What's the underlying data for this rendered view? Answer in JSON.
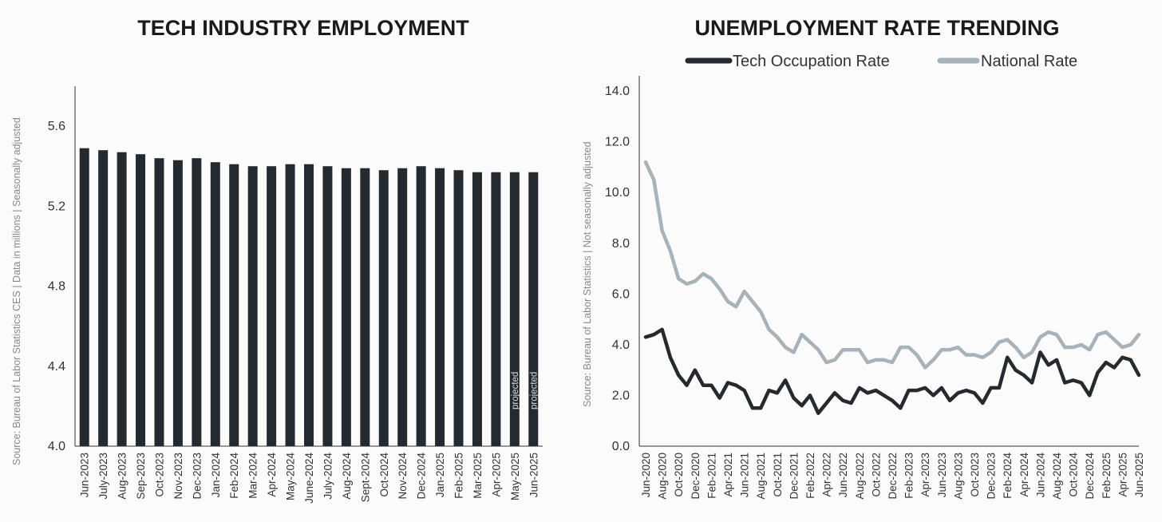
{
  "chart_data": [
    {
      "type": "bar",
      "title": "TECH INDUSTRY EMPLOYMENT",
      "source": "Source: Bureau of Labor Statistics CES | Data in millions | Seasonally adjusted",
      "categories": [
        "Jun-2023",
        "July-2023",
        "Aug-2023",
        "Sep-2023",
        "Oct-2023",
        "Nov-2023",
        "Dec-2023",
        "Jan-2024",
        "Feb-2024",
        "Mar-2024",
        "Apr-2024",
        "May-2024",
        "June-2024",
        "July-2024",
        "Aug-2024",
        "Sept-2024",
        "Oct-2024",
        "Nov-2024",
        "Dec-2024",
        "Jan-2025",
        "Feb-2025",
        "Mar-2025",
        "Apr-2025",
        "May-2025",
        "Jun-2025"
      ],
      "values": [
        5.49,
        5.48,
        5.47,
        5.46,
        5.44,
        5.43,
        5.44,
        5.42,
        5.41,
        5.4,
        5.4,
        5.41,
        5.41,
        5.4,
        5.39,
        5.39,
        5.38,
        5.39,
        5.4,
        5.39,
        5.38,
        5.37,
        5.37,
        5.37,
        5.37
      ],
      "annotations": [
        "",
        "",
        "",
        "",
        "",
        "",
        "",
        "",
        "",
        "",
        "",
        "",
        "",
        "",
        "",
        "",
        "",
        "",
        "",
        "",
        "",
        "",
        "",
        "projected",
        "projected"
      ],
      "ylim": [
        4.0,
        5.8
      ],
      "yticks": [
        "4.0",
        "4.4",
        "4.8",
        "5.2",
        "5.6"
      ],
      "bar_color": "#262a2e",
      "xlabel": "",
      "ylabel": ""
    },
    {
      "type": "line",
      "title": "UNEMPLOYMENT RATE TRENDING",
      "source": "Source: Bureau of Labor Statistics | Not seasonally adjusted",
      "x": [
        "Jun-2020",
        "Jul-2020",
        "Aug-2020",
        "Sep-2020",
        "Oct-2020",
        "Nov-2020",
        "Dec-2020",
        "Jan-2021",
        "Feb-2021",
        "Mar-2021",
        "Apr-2021",
        "May-2021",
        "Jun-2021",
        "Jul-2021",
        "Aug-2021",
        "Sep-2021",
        "Oct-2021",
        "Nov-2021",
        "Dec-2021",
        "Jan-2022",
        "Feb-2022",
        "Mar-2022",
        "Apr-2022",
        "May-2022",
        "Jun-2022",
        "Jul-2022",
        "Aug-2022",
        "Sep-2022",
        "Oct-2022",
        "Nov-2022",
        "Dec-2022",
        "Jan-2023",
        "Feb-2023",
        "Mar-2023",
        "Apr-2023",
        "May-2023",
        "Jun-2023",
        "Jul-2023",
        "Aug-2023",
        "Sep-2023",
        "Oct-2023",
        "Nov-2023",
        "Dec-2023",
        "Jan-2024",
        "Feb-2024",
        "Mar-2024",
        "Apr-2024",
        "May-2024",
        "Jun-2024",
        "Jul-2024",
        "Aug-2024",
        "Sep-2024",
        "Oct-2024",
        "Nov-2024",
        "Dec-2024",
        "Jan-2025",
        "Feb-2025",
        "Mar-2025",
        "Apr-2025",
        "May-2025",
        "Jun-2025"
      ],
      "xticks": [
        "Jun-2020",
        "Aug-2020",
        "Oct-2020",
        "Dec-2020",
        "Feb-2021",
        "Apr-2021",
        "Jun-2021",
        "Aug-2021",
        "Oct-2021",
        "Dec-2021",
        "Feb-2022",
        "Apr-2022",
        "Jun-2022",
        "Aug-2022",
        "Oct-2022",
        "Dec-2022",
        "Feb-2023",
        "Apr-2023",
        "Jun-2023",
        "Aug-2023",
        "Oct-2023",
        "Dec-2023",
        "Feb-2024",
        "Apr-2024",
        "Jun-2024",
        "Aug-2024",
        "Oct-2024",
        "Dec-2024",
        "Feb-2025",
        "Apr-2025",
        "Jun-2025"
      ],
      "series": [
        {
          "name": "Tech Occupation Rate",
          "color": "#262a2e",
          "values": [
            4.3,
            4.4,
            4.6,
            3.5,
            2.8,
            2.4,
            3.0,
            2.4,
            2.4,
            1.9,
            2.5,
            2.4,
            2.2,
            1.5,
            1.5,
            2.2,
            2.1,
            2.6,
            1.9,
            1.6,
            2.0,
            1.3,
            1.7,
            2.1,
            1.8,
            1.7,
            2.3,
            2.1,
            2.2,
            2.0,
            1.8,
            1.5,
            2.2,
            2.2,
            2.3,
            2.0,
            2.3,
            1.8,
            2.1,
            2.2,
            2.1,
            1.7,
            2.3,
            2.3,
            3.5,
            3.0,
            2.8,
            2.5,
            3.7,
            3.2,
            3.4,
            2.5,
            2.6,
            2.5,
            2.0,
            2.9,
            3.3,
            3.1,
            3.5,
            3.4,
            2.8
          ]
        },
        {
          "name": "National Rate",
          "color": "#a8b2b9",
          "values": [
            11.2,
            10.5,
            8.5,
            7.7,
            6.6,
            6.4,
            6.5,
            6.8,
            6.6,
            6.2,
            5.7,
            5.5,
            6.1,
            5.7,
            5.3,
            4.6,
            4.3,
            3.9,
            3.7,
            4.4,
            4.1,
            3.8,
            3.3,
            3.4,
            3.8,
            3.8,
            3.8,
            3.3,
            3.4,
            3.4,
            3.3,
            3.9,
            3.9,
            3.6,
            3.1,
            3.4,
            3.8,
            3.8,
            3.9,
            3.6,
            3.6,
            3.5,
            3.7,
            4.1,
            4.2,
            3.9,
            3.5,
            3.7,
            4.3,
            4.5,
            4.4,
            3.9,
            3.9,
            4.0,
            3.8,
            4.4,
            4.5,
            4.2,
            3.9,
            4.0,
            4.4
          ]
        }
      ],
      "ylim": [
        0,
        14.6
      ],
      "yticks": [
        "0.0",
        "2.0",
        "4.0",
        "6.0",
        "8.0",
        "10.0",
        "12.0",
        "14.0"
      ],
      "legend": "top",
      "xlabel": "",
      "ylabel": ""
    }
  ]
}
